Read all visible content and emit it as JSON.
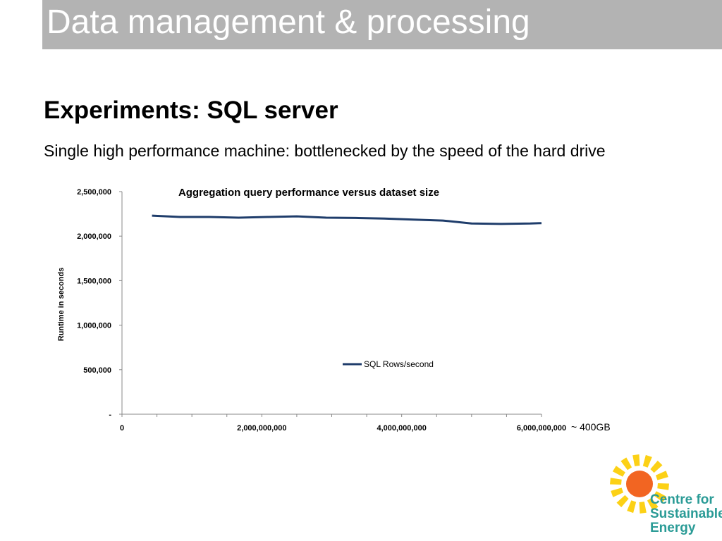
{
  "slide": {
    "title": "Data management & processing",
    "heading": "Experiments: SQL server",
    "subtext": "Single high performance machine: bottlenecked by the speed of the hard drive",
    "axis_note": "~ 400GB"
  },
  "logo": {
    "line1": "Centre for",
    "line2": "Sustainable",
    "line3": "Energy",
    "text_color": "#2a9b96",
    "sun_color": "#f26522",
    "ray_color": "#fcd116"
  },
  "chart_data": {
    "type": "line",
    "title": "Aggregation query performance versus dataset size",
    "xlabel": "",
    "ylabel": "Runtime in seconds",
    "xlim": [
      0,
      6000000000
    ],
    "ylim": [
      0,
      2500000
    ],
    "x_ticks": [
      0,
      2000000000,
      4000000000,
      6000000000
    ],
    "x_tick_labels": [
      "0",
      "2,000,000,000",
      "4,000,000,000",
      "6,000,000,000"
    ],
    "y_ticks": [
      0,
      500000,
      1000000,
      1500000,
      2000000,
      2500000
    ],
    "y_tick_labels": [
      "-",
      "500,000",
      "1,000,000",
      "1,500,000",
      "2,000,000",
      "2,500,000"
    ],
    "legend_position": "center",
    "series": [
      {
        "name": "SQL Rows/second",
        "color": "#1f3d6b",
        "x": [
          430000000,
          830000000,
          1250000000,
          1670000000,
          2080000000,
          2500000000,
          2920000000,
          3340000000,
          3750000000,
          4170000000,
          4590000000,
          5000000000,
          5420000000,
          5840000000,
          6000000000
        ],
        "y": [
          2230000,
          2215000,
          2215000,
          2207000,
          2215000,
          2222000,
          2207000,
          2204000,
          2197000,
          2185000,
          2175000,
          2142000,
          2137000,
          2142000,
          2146000
        ]
      }
    ]
  }
}
